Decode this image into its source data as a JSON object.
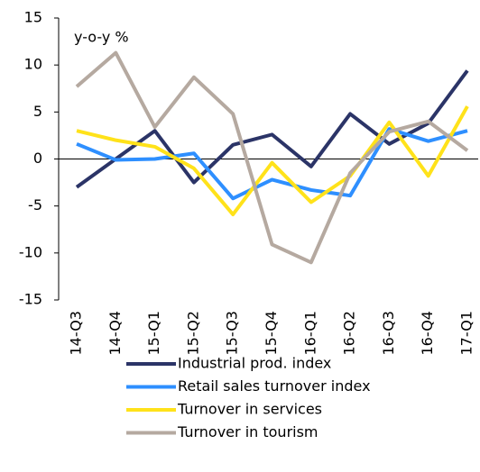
{
  "chart_data": {
    "type": "line",
    "annotation": "y-o-y %",
    "categories": [
      "14-Q3",
      "14-Q4",
      "15-Q1",
      "15-Q2",
      "15-Q3",
      "15-Q4",
      "16-Q1",
      "16-Q2",
      "16-Q3",
      "16-Q4",
      "17-Q1"
    ],
    "series": [
      {
        "name": "Industrial prod. index",
        "color": "#2b3467",
        "values": [
          -3,
          0,
          3,
          -2.5,
          1.5,
          2.6,
          -0.8,
          4.8,
          1.6,
          3.8,
          9.4
        ]
      },
      {
        "name": "Retail sales turnover index",
        "color": "#2e8fff",
        "values": [
          1.6,
          -0.1,
          0,
          0.6,
          -4.2,
          -2.2,
          -3.3,
          -3.9,
          3.2,
          1.9,
          3.0
        ]
      },
      {
        "name": "Turnover in services",
        "color": "#ffe21a",
        "values": [
          3.0,
          2.0,
          1.3,
          -1.0,
          -5.9,
          -0.4,
          -4.6,
          -1.8,
          3.9,
          -1.8,
          5.6
        ]
      },
      {
        "name": "Turnover in tourism",
        "color": "#b5a9a0",
        "values": [
          7.7,
          11.3,
          3.4,
          8.7,
          4.8,
          -9.1,
          -11.0,
          -1.5,
          2.9,
          4.0,
          0.9
        ]
      }
    ],
    "ylim": [
      -15,
      15
    ],
    "yticks": [
      -15,
      -10,
      -5,
      0,
      5,
      10,
      15
    ],
    "legend": "bottom"
  }
}
